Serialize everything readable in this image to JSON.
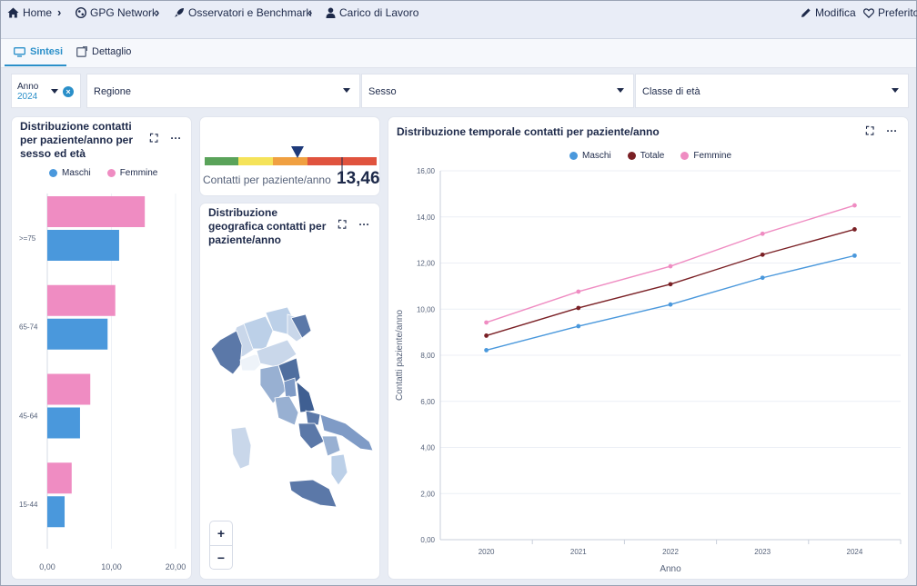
{
  "breadcrumb": [
    {
      "label": "Home",
      "icon": "home-icon"
    },
    {
      "label": "GPG Network",
      "icon": "network-icon"
    },
    {
      "label": "Osservatori e Benchmark",
      "icon": "rocket-icon"
    },
    {
      "label": "Carico di Lavoro",
      "icon": "user-icon"
    }
  ],
  "actions": {
    "edit": "Modifica",
    "favorite": "Preferito"
  },
  "tabs": [
    {
      "label": "Sintesi"
    },
    {
      "label": "Dettaglio"
    }
  ],
  "filters": {
    "year_label": "Anno",
    "year_value": "2024",
    "region": "Regione",
    "sex": "Sesso",
    "age_class": "Classe di età"
  },
  "colors": {
    "maschi": "#4a98dc",
    "femmine": "#ef8cc2",
    "totale": "#7a2025",
    "accent": "#2a8fc9"
  },
  "bar_card": {
    "title": "Distribuzione contatti per paziente/anno per sesso ed età"
  },
  "kpi": {
    "label": "Contatti per paziente/anno",
    "value": "13,46"
  },
  "map_card": {
    "title": "Distribuzione geografica contatti per paziente/anno",
    "zoom_in": "+",
    "zoom_out": "−"
  },
  "line_card": {
    "title": "Distribuzione temporale contatti per paziente/anno"
  },
  "chart_data": [
    {
      "type": "bar",
      "orientation": "horizontal",
      "categories": [
        ">=75",
        "65-74",
        "45-64",
        "15-44"
      ],
      "series": [
        {
          "name": "Maschi",
          "values": [
            11.2,
            9.4,
            5.1,
            2.7
          ]
        },
        {
          "name": "Femmine",
          "values": [
            15.2,
            10.6,
            6.7,
            3.8
          ]
        }
      ],
      "x_ticks": [
        "0,00",
        "10,00",
        "20,00"
      ],
      "xlim": [
        0,
        20
      ],
      "legend": "top"
    },
    {
      "type": "line",
      "x": [
        "2020",
        "2021",
        "2022",
        "2023",
        "2024"
      ],
      "series": [
        {
          "name": "Maschi",
          "values": [
            8.22,
            9.26,
            10.2,
            11.36,
            12.32
          ]
        },
        {
          "name": "Totale",
          "values": [
            8.85,
            10.05,
            11.08,
            12.36,
            13.46
          ]
        },
        {
          "name": "Femmine",
          "values": [
            9.42,
            10.76,
            11.86,
            13.27,
            14.5
          ]
        }
      ],
      "xlabel": "Anno",
      "ylabel": "Contatti paziente/anno",
      "y_ticks": [
        "0,00",
        "2,00",
        "4,00",
        "6,00",
        "8,00",
        "10,00",
        "12,00",
        "14,00",
        "16,00"
      ],
      "ylim": [
        0,
        16
      ],
      "grid": true,
      "legend": "top"
    }
  ]
}
